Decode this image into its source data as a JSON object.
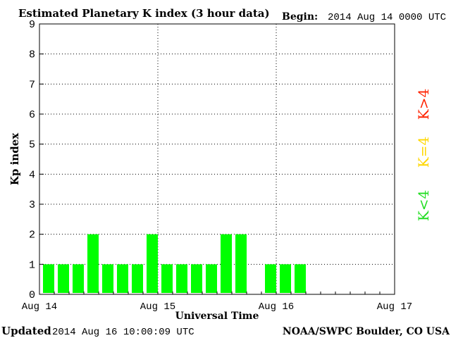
{
  "header": {
    "title": "Estimated Planetary K index (3 hour data)",
    "begin_label": "Begin:",
    "begin_value": "2014 Aug 14 0000 UTC"
  },
  "footer": {
    "updated_label": "Updated",
    "updated_value": "2014 Aug 16 10:00:09 UTC",
    "credit": "NOAA/SWPC Boulder, CO USA"
  },
  "legend": {
    "above": "K>4",
    "equal": "K=4",
    "below": "K<4"
  },
  "colors": {
    "bar": "#00ff00",
    "k_above": "#ff2200",
    "k_equal": "#ffd700",
    "k_below": "#22dd22",
    "grid": "#000000",
    "frame": "#000000"
  },
  "chart_data": {
    "type": "bar",
    "title": "Estimated Planetary K index (3 hour data)",
    "xlabel": "Universal Time",
    "ylabel": "Kp index",
    "ylim": [
      0,
      9
    ],
    "yticks": [
      0,
      1,
      2,
      3,
      4,
      5,
      6,
      7,
      8,
      9
    ],
    "xticks": [
      "Aug 14",
      "Aug 15",
      "Aug 16",
      "Aug 17"
    ],
    "x_range_days": 3,
    "interval_hours": 3,
    "grid": true,
    "values": [
      1,
      1,
      1,
      2,
      1,
      1,
      1,
      2,
      1,
      1,
      1,
      1,
      2,
      2,
      0,
      1,
      1,
      1
    ]
  }
}
